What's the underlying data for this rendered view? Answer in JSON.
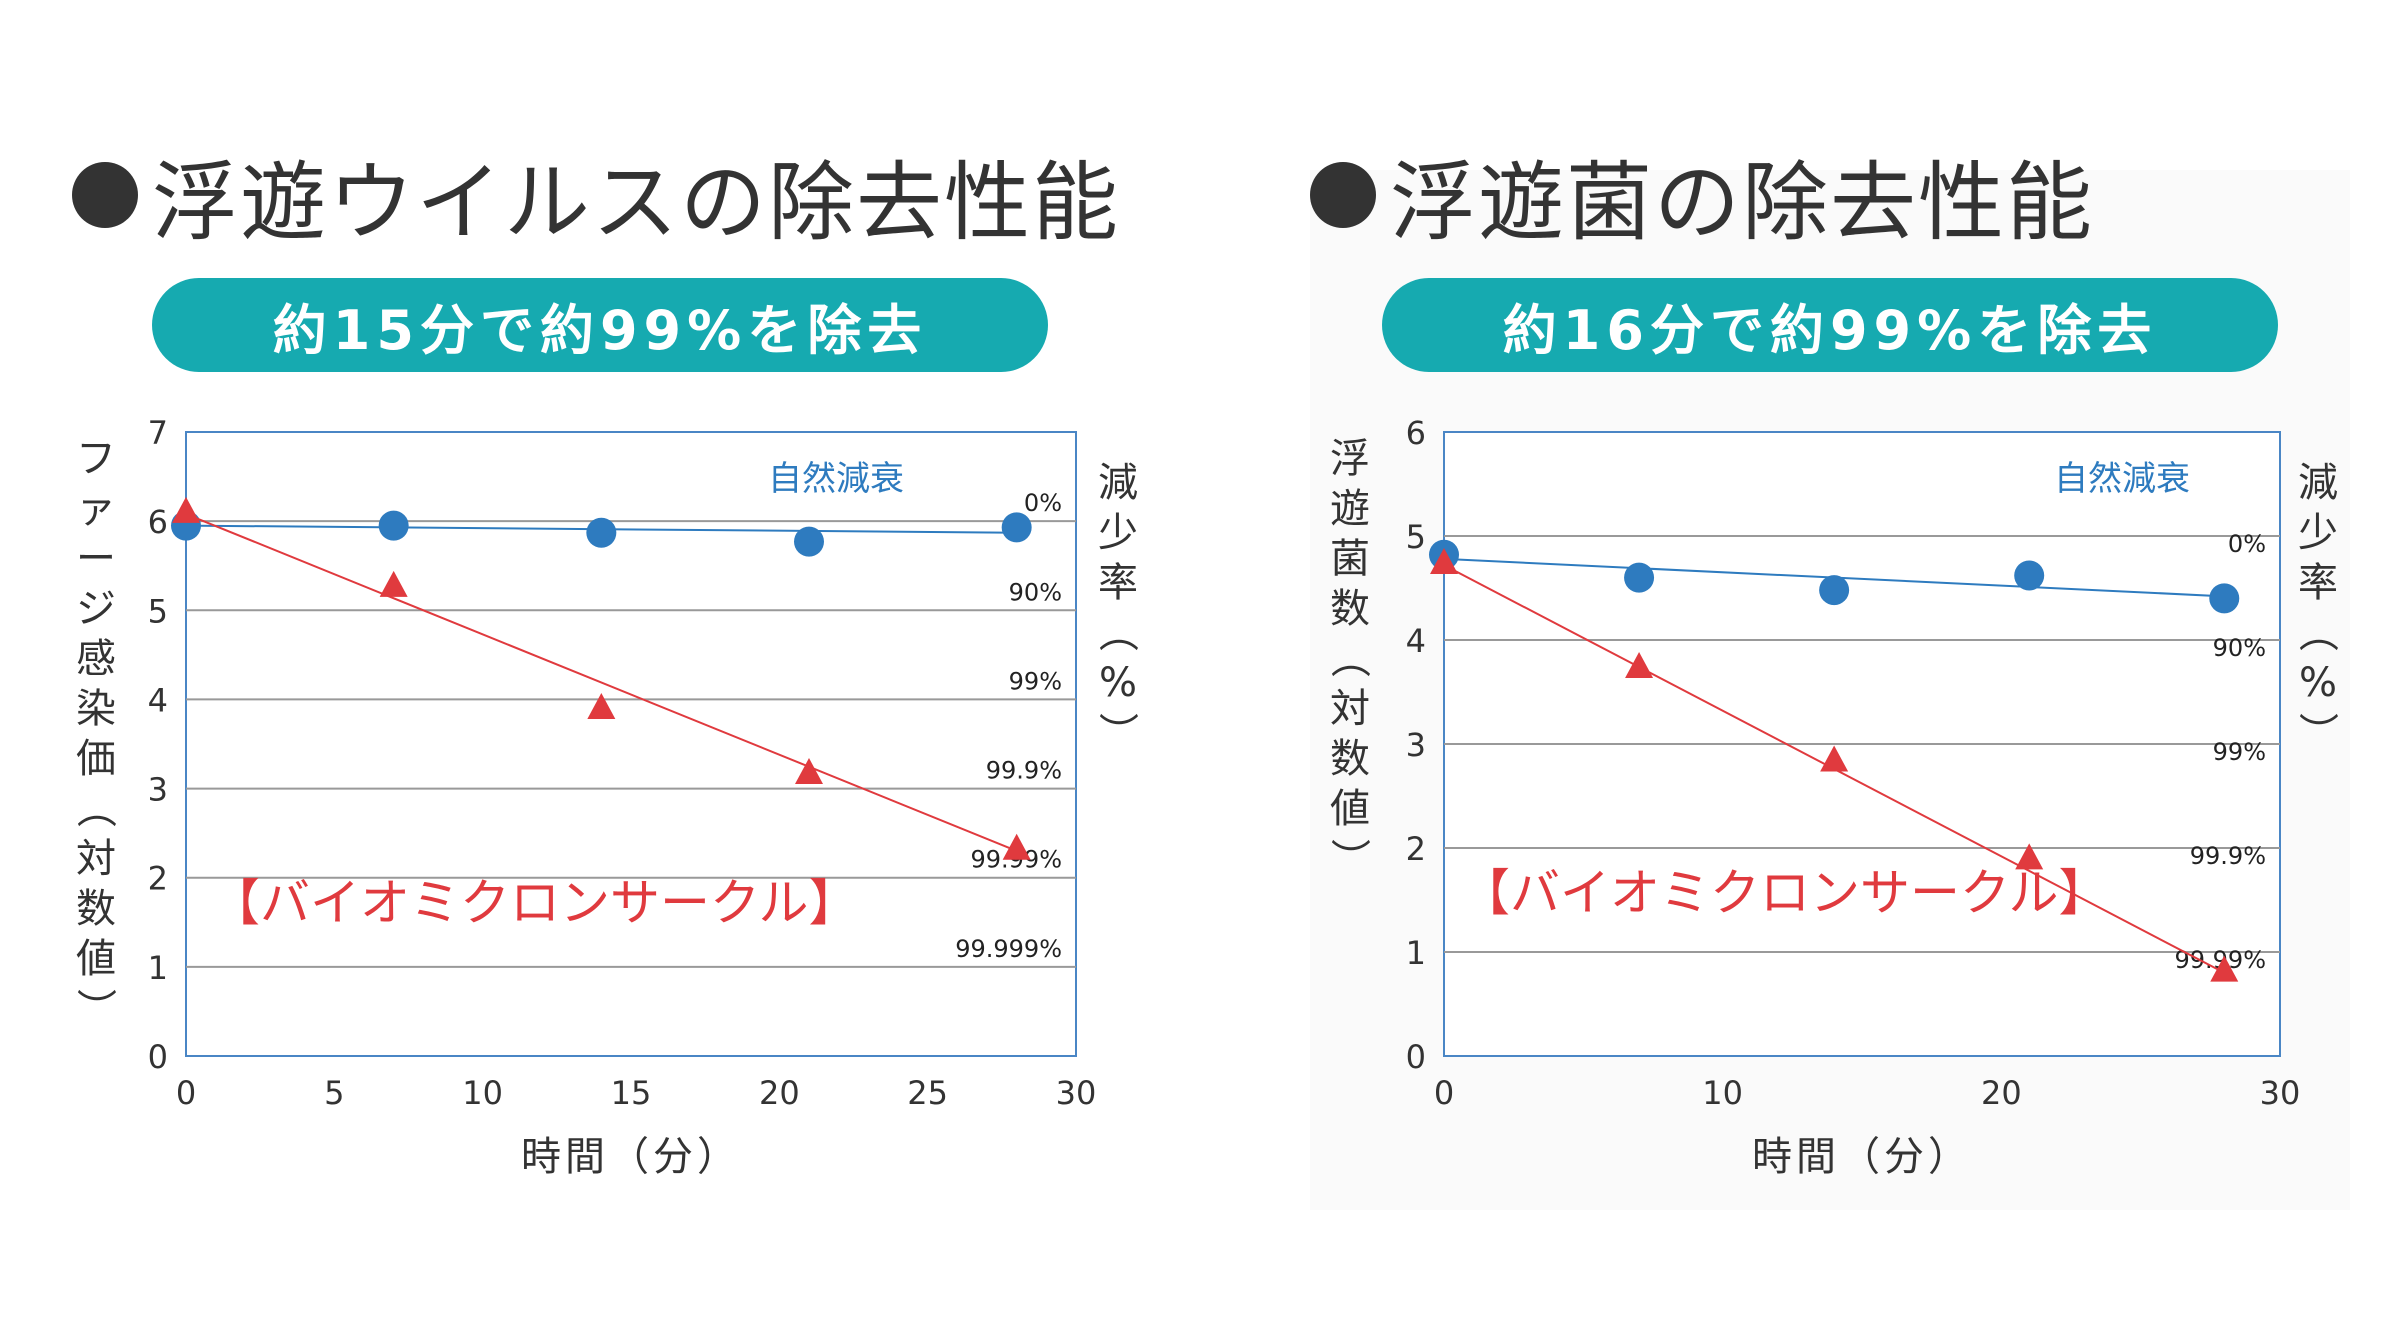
{
  "charts": [
    {
      "title": "浮遊ウイルスの除去性能",
      "banner": "約15分で約99%を除去",
      "ylabel_left": "ファージ感染価（対数値）",
      "ylabel_right": "減少率（%）",
      "xlabel": "時間（分）",
      "legend_natural": "自然減衰",
      "legend_product": "【バイオミクロンサークル】"
    },
    {
      "title": "浮遊菌の除去性能",
      "banner": "約16分で約99%を除去",
      "ylabel_left": "浮遊菌数（対数値）",
      "ylabel_right": "減少率（%）",
      "xlabel": "時間（分）",
      "legend_natural": "自然減衰",
      "legend_product": "【バイオミクロンサークル】"
    }
  ],
  "chart_data": [
    {
      "type": "scatter",
      "title": "浮遊ウイルスの除去性能",
      "xlabel": "時間（分）",
      "ylabel": "ファージ感染価（対数値）",
      "xlim": [
        0,
        30
      ],
      "ylim": [
        0,
        7
      ],
      "xticks": [
        0,
        5,
        10,
        15,
        20,
        25,
        30
      ],
      "yticks": [
        0,
        1,
        2,
        3,
        4,
        5,
        6,
        7
      ],
      "right_axis_labels": [
        {
          "y": 6,
          "label": "0%"
        },
        {
          "y": 5,
          "label": "90%"
        },
        {
          "y": 4,
          "label": "99%"
        },
        {
          "y": 3,
          "label": "99.9%"
        },
        {
          "y": 2,
          "label": "99.99%"
        },
        {
          "y": 1,
          "label": "99.999%"
        }
      ],
      "grid": true,
      "series": [
        {
          "name": "自然減衰",
          "color": "#2e7bbf",
          "marker": "circle",
          "x": [
            0,
            7,
            14,
            21,
            28
          ],
          "y": [
            5.95,
            5.95,
            5.87,
            5.77,
            5.93
          ],
          "trend": [
            [
              0,
              5.95
            ],
            [
              28,
              5.87
            ]
          ]
        },
        {
          "name": "【バイオミクロンサークル】",
          "color": "#e03a3e",
          "marker": "triangle",
          "x": [
            0,
            7,
            14,
            21,
            28
          ],
          "y": [
            6.08,
            5.25,
            3.88,
            3.15,
            2.3
          ],
          "trend": [
            [
              0,
              6.08
            ],
            [
              28,
              2.3
            ]
          ]
        }
      ]
    },
    {
      "type": "scatter",
      "title": "浮遊菌の除去性能",
      "xlabel": "時間（分）",
      "ylabel": "浮遊菌数（対数値）",
      "xlim": [
        0,
        30
      ],
      "ylim": [
        0,
        6
      ],
      "xticks": [
        0,
        10,
        20,
        30
      ],
      "yticks": [
        0,
        1,
        2,
        3,
        4,
        5,
        6
      ],
      "right_axis_labels": [
        {
          "y": 4.75,
          "label": "0%"
        },
        {
          "y": 3.75,
          "label": "90%"
        },
        {
          "y": 2.75,
          "label": "99%"
        },
        {
          "y": 1.75,
          "label": "99.9%"
        },
        {
          "y": 0.75,
          "label": "99.99%"
        }
      ],
      "grid": true,
      "series": [
        {
          "name": "自然減衰",
          "color": "#2e7bbf",
          "marker": "circle",
          "x": [
            0,
            7,
            14,
            21,
            28
          ],
          "y": [
            4.82,
            4.6,
            4.48,
            4.62,
            4.4
          ],
          "trend": [
            [
              0,
              4.78
            ],
            [
              28,
              4.42
            ]
          ]
        },
        {
          "name": "【バイオミクロンサークル】",
          "color": "#e03a3e",
          "marker": "triangle",
          "x": [
            0,
            7,
            14,
            21,
            28
          ],
          "y": [
            4.72,
            3.72,
            2.82,
            1.88,
            0.8
          ],
          "trend": [
            [
              0,
              4.72
            ],
            [
              28,
              0.8
            ]
          ]
        }
      ]
    }
  ]
}
